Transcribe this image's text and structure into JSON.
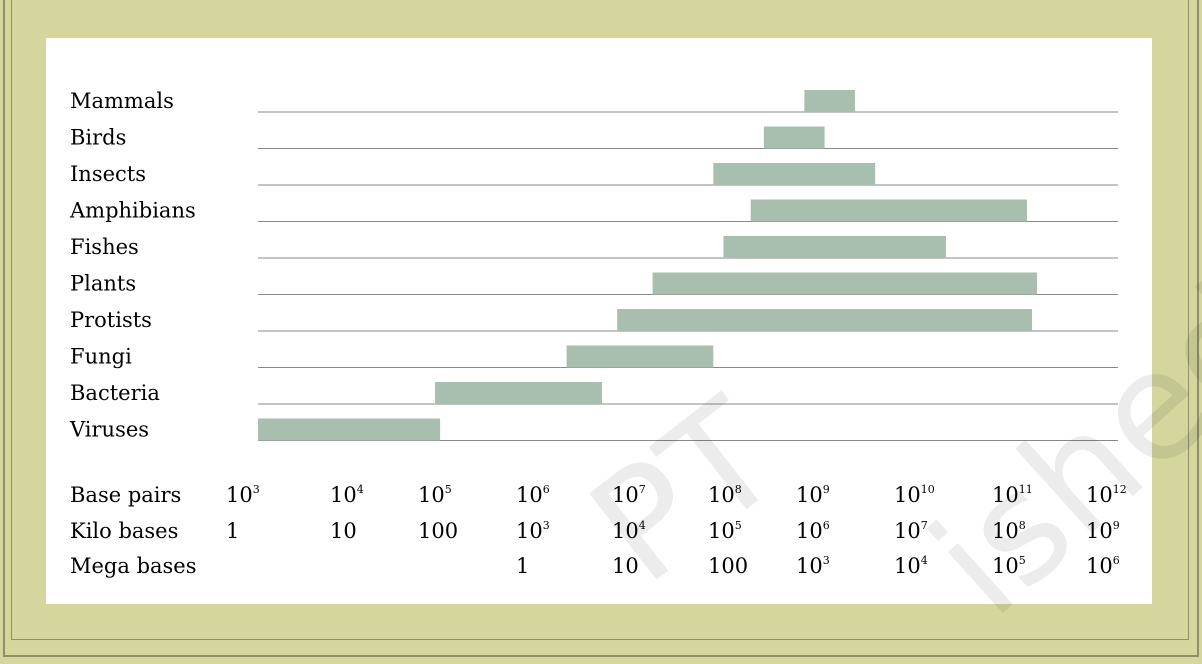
{
  "chart_data": {
    "type": "bar",
    "orientation": "horizontal-range",
    "title": "",
    "grid": "horizontal rule under each category",
    "categories": [
      "Mammals",
      "Birds",
      "Insects",
      "Amphibians",
      "Fishes",
      "Plants",
      "Protists",
      "Fungi",
      "Bacteria",
      "Viruses"
    ],
    "ranges_log10_base_pairs": [
      [
        9.3,
        9.8
      ],
      [
        8.9,
        9.5
      ],
      [
        8.4,
        10.0
      ],
      [
        8.77,
        11.5
      ],
      [
        8.5,
        10.7
      ],
      [
        7.8,
        11.6
      ],
      [
        7.45,
        11.55
      ],
      [
        6.95,
        8.4
      ],
      [
        5.65,
        7.3
      ],
      [
        3.9,
        5.7
      ]
    ],
    "xlim_log10_base_pairs": [
      3.9,
      12.4
    ],
    "bar_color": "#a8bfb0",
    "scales": [
      {
        "label": "Base pairs",
        "ticks": [
          {
            "b": "10",
            "e": "3"
          },
          {
            "b": "10",
            "e": "4"
          },
          {
            "b": "10",
            "e": "5"
          },
          {
            "b": "10",
            "e": "6"
          },
          {
            "b": "10",
            "e": "7"
          },
          {
            "b": "10",
            "e": "8"
          },
          {
            "b": "10",
            "e": "9"
          },
          {
            "b": "10",
            "e": "10"
          },
          {
            "b": "10",
            "e": "11"
          },
          {
            "b": "10",
            "e": "12"
          }
        ]
      },
      {
        "label": "Kilo bases",
        "ticks": [
          {
            "b": "1",
            "e": ""
          },
          {
            "b": "10",
            "e": ""
          },
          {
            "b": "100",
            "e": ""
          },
          {
            "b": "10",
            "e": "3"
          },
          {
            "b": "10",
            "e": "4"
          },
          {
            "b": "10",
            "e": "5"
          },
          {
            "b": "10",
            "e": "6"
          },
          {
            "b": "10",
            "e": "7"
          },
          {
            "b": "10",
            "e": "8"
          },
          {
            "b": "10",
            "e": "9"
          }
        ]
      },
      {
        "label": "Mega bases",
        "ticks": [
          null,
          null,
          null,
          {
            "b": "1",
            "e": ""
          },
          {
            "b": "10",
            "e": ""
          },
          {
            "b": "100",
            "e": ""
          },
          {
            "b": "10",
            "e": "3"
          },
          {
            "b": "10",
            "e": "4"
          },
          {
            "b": "10",
            "e": "5"
          },
          {
            "b": "10",
            "e": "6"
          }
        ]
      }
    ]
  },
  "watermark": [
    "PT",
    "ished"
  ]
}
